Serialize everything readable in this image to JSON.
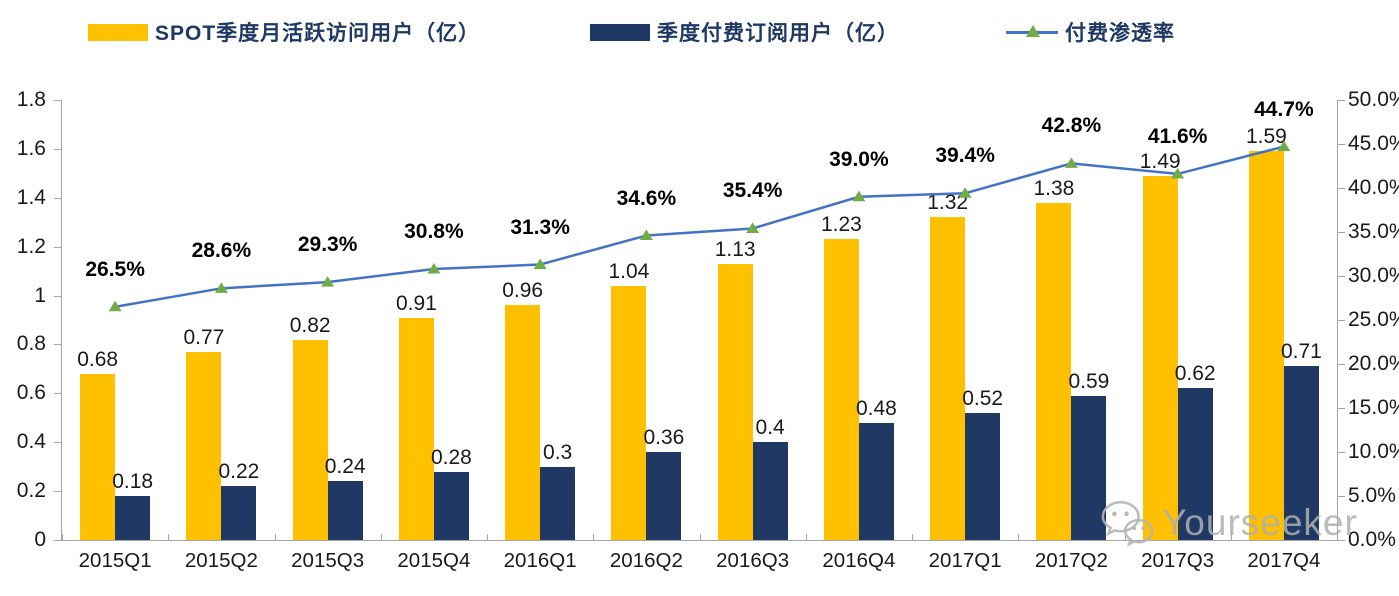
{
  "legend": {
    "items": [
      {
        "label": "SPOT季度月活跃访问用户（亿）",
        "swatch": "bar",
        "color": "#FFC000"
      },
      {
        "label": "季度付费订阅用户（亿）",
        "swatch": "bar",
        "color": "#1F3864"
      },
      {
        "label": "付费渗透率",
        "swatch": "line-triangle",
        "color": "#4472C4",
        "marker_color": "#70AD47"
      }
    ]
  },
  "watermark": {
    "text": "Yourseeker",
    "icon": "wechat-icon"
  },
  "chart_data": {
    "type": "bar",
    "subtype": "grouped-bar-with-line",
    "categories": [
      "2015Q1",
      "2015Q2",
      "2015Q3",
      "2015Q4",
      "2016Q1",
      "2016Q2",
      "2016Q3",
      "2016Q4",
      "2017Q1",
      "2017Q2",
      "2017Q3",
      "2017Q4"
    ],
    "series": [
      {
        "name": "SPOT季度月活跃访问用户（亿）",
        "type": "bar",
        "axis": "left",
        "color": "#FFC000",
        "values": [
          0.68,
          0.77,
          0.82,
          0.91,
          0.96,
          1.04,
          1.13,
          1.23,
          1.32,
          1.38,
          1.49,
          1.59
        ],
        "labels": [
          "0.68",
          "0.77",
          "0.82",
          "0.91",
          "0.96",
          "1.04",
          "1.13",
          "1.23",
          "1.32",
          "1.38",
          "1.49",
          "1.59"
        ]
      },
      {
        "name": "季度付费订阅用户（亿）",
        "type": "bar",
        "axis": "left",
        "color": "#1F3864",
        "values": [
          0.18,
          0.22,
          0.24,
          0.28,
          0.3,
          0.36,
          0.4,
          0.48,
          0.52,
          0.59,
          0.62,
          0.71
        ],
        "labels": [
          "0.18",
          "0.22",
          "0.24",
          "0.28",
          "0.3",
          "0.36",
          "0.4",
          "0.48",
          "0.52",
          "0.59",
          "0.62",
          "0.71"
        ]
      },
      {
        "name": "付费渗透率",
        "type": "line",
        "axis": "right",
        "color": "#4472C4",
        "marker": "triangle",
        "marker_color": "#70AD47",
        "values": [
          26.5,
          28.6,
          29.3,
          30.8,
          31.3,
          34.6,
          35.4,
          39.0,
          39.4,
          42.8,
          41.6,
          44.7
        ],
        "labels": [
          "26.5%",
          "28.6%",
          "29.3%",
          "30.8%",
          "31.3%",
          "34.6%",
          "35.4%",
          "39.0%",
          "39.4%",
          "42.8%",
          "41.6%",
          "44.7%"
        ]
      }
    ],
    "left_axis": {
      "min": 0,
      "max": 1.8,
      "step": 0.2,
      "ticks": [
        "0",
        "0.2",
        "0.4",
        "0.6",
        "0.8",
        "1",
        "1.2",
        "1.4",
        "1.6",
        "1.8"
      ]
    },
    "right_axis": {
      "min": 0,
      "max": 50,
      "step": 5,
      "ticks": [
        "0.0%",
        "5.0%",
        "10.0%",
        "15.0%",
        "20.0%",
        "25.0%",
        "30.0%",
        "35.0%",
        "40.0%",
        "45.0%",
        "50.0%"
      ]
    },
    "grid": false,
    "legend_position": "top"
  }
}
